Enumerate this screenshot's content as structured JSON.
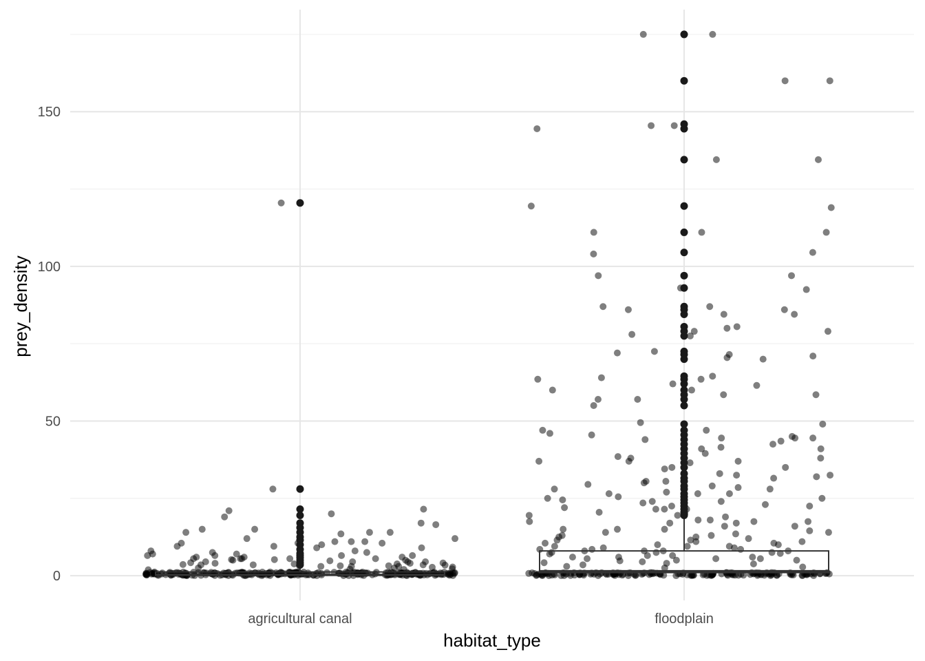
{
  "chart_data": {
    "type": "box-jitter",
    "xlabel": "habitat_type",
    "ylabel": "prey_density",
    "categories": [
      "agricultural canal",
      "floodplain"
    ],
    "ylim": [
      -8,
      183
    ],
    "yticks": [
      0,
      50,
      100,
      150
    ],
    "ytick_labels": [
      "0",
      "50",
      "100",
      "150"
    ],
    "grid": true,
    "boxes": [
      {
        "name": "agricultural canal",
        "q1": 0.1,
        "median": 0.3,
        "q3": 1.2,
        "whisker_low": 0,
        "whisker_high": 3,
        "outliers": [
          3.5,
          4.2,
          5,
          5.8,
          6.5,
          7.2,
          8.5,
          10,
          11.5,
          12.5,
          14,
          15.5,
          17,
          19.5,
          21.5,
          28,
          120.5
        ]
      },
      {
        "name": "floodplain",
        "q1": 1,
        "median": 1.5,
        "q3": 8,
        "whisker_low": 0,
        "whisker_high": 19,
        "outliers": [
          19.5,
          20.5,
          21.5,
          22.5,
          23.5,
          24.5,
          25.5,
          26.5,
          28,
          29,
          30.5,
          31.5,
          33,
          35,
          36.5,
          38,
          39.5,
          41,
          42.5,
          44,
          45.5,
          47,
          49,
          55,
          57,
          58.5,
          60,
          62,
          63.5,
          64.5,
          70,
          71.5,
          72.5,
          77.5,
          79,
          80.5,
          84.5,
          86,
          87,
          93,
          97,
          104.5,
          111,
          119.5,
          134.5,
          144.5,
          146,
          160,
          175
        ]
      }
    ],
    "points": [
      {
        "category": "agricultural canal",
        "values": [
          20,
          15,
          13.5,
          10.5,
          9,
          7,
          6,
          5.5,
          4.5,
          4,
          3.5,
          3,
          2.5,
          2,
          6.5,
          5,
          4.2,
          3.8,
          9.5,
          11,
          14,
          14,
          10,
          9.5,
          17,
          11,
          7.5,
          6.5,
          5,
          4.5,
          3,
          4,
          5.5,
          8,
          9,
          12,
          10.5,
          7,
          6,
          5.5,
          4.5,
          3.5,
          21.5,
          15,
          11,
          6.5,
          5.2,
          3.2,
          4.8,
          5.2,
          120.5,
          28,
          21,
          19,
          16.5,
          14,
          12,
          10.5,
          8,
          6,
          5,
          7.5,
          6.5,
          5.5,
          3.2,
          2.8,
          3.5,
          3,
          2.5,
          4.5,
          5.5,
          3.8,
          2.2,
          3.4,
          2.7,
          1.9,
          4.1,
          3.6,
          2.1,
          3.2
        ]
      },
      {
        "category": "floodplain",
        "values": [
          92.5,
          37,
          35,
          30.5,
          24,
          18,
          14,
          10,
          7.5,
          5.5,
          145.5,
          70.5,
          47,
          23,
          104,
          160,
          111,
          58.5,
          46,
          43.5,
          38,
          12.5,
          11,
          9.5,
          87,
          30,
          22.5,
          20,
          15,
          8.5,
          111,
          119,
          29.5,
          84.5,
          60,
          37,
          44.5,
          19.5,
          17.5,
          9,
          25,
          26.5,
          28.5,
          27,
          21.5,
          71,
          19,
          15,
          13.5,
          10.5,
          8.5,
          175,
          160,
          145.5,
          144.5,
          134.5,
          119.5,
          111,
          104.5,
          97,
          93,
          87,
          86,
          84.5,
          80.5,
          79,
          77.5,
          72.5,
          71.5,
          70,
          64.5,
          63.5,
          62,
          60,
          58.5,
          57,
          55,
          49,
          47,
          45.5,
          44,
          42.5,
          41,
          39.5,
          38,
          36.5,
          35,
          33,
          31.5,
          30.5,
          29,
          28,
          26.5,
          25.5,
          24.5,
          23.5,
          22.5,
          21.5,
          20.5,
          19.5,
          134.5,
          78,
          63.5,
          45,
          80,
          86,
          44.5,
          21.5,
          22,
          18,
          14.5,
          13,
          12,
          10,
          8,
          44.5,
          17,
          16,
          17,
          14,
          13,
          11.5,
          9,
          8,
          6.5,
          5,
          37,
          32,
          34.5,
          24,
          17.5,
          11.5,
          9.5,
          8,
          7,
          6,
          175,
          79,
          61.5,
          72,
          32.5,
          28,
          26.5,
          16,
          15,
          10.5,
          8.5,
          7.5,
          5,
          97,
          64,
          57,
          49.5,
          41.5,
          41,
          38.5,
          32.5,
          25,
          17.5,
          8,
          6,
          5.5,
          4,
          12.5,
          11,
          9.5,
          7.5,
          4.5,
          3.5,
          3,
          2.5,
          6,
          4.8,
          3.8,
          2.8,
          4.2,
          5.5,
          6.5,
          7.2
        ]
      }
    ]
  }
}
